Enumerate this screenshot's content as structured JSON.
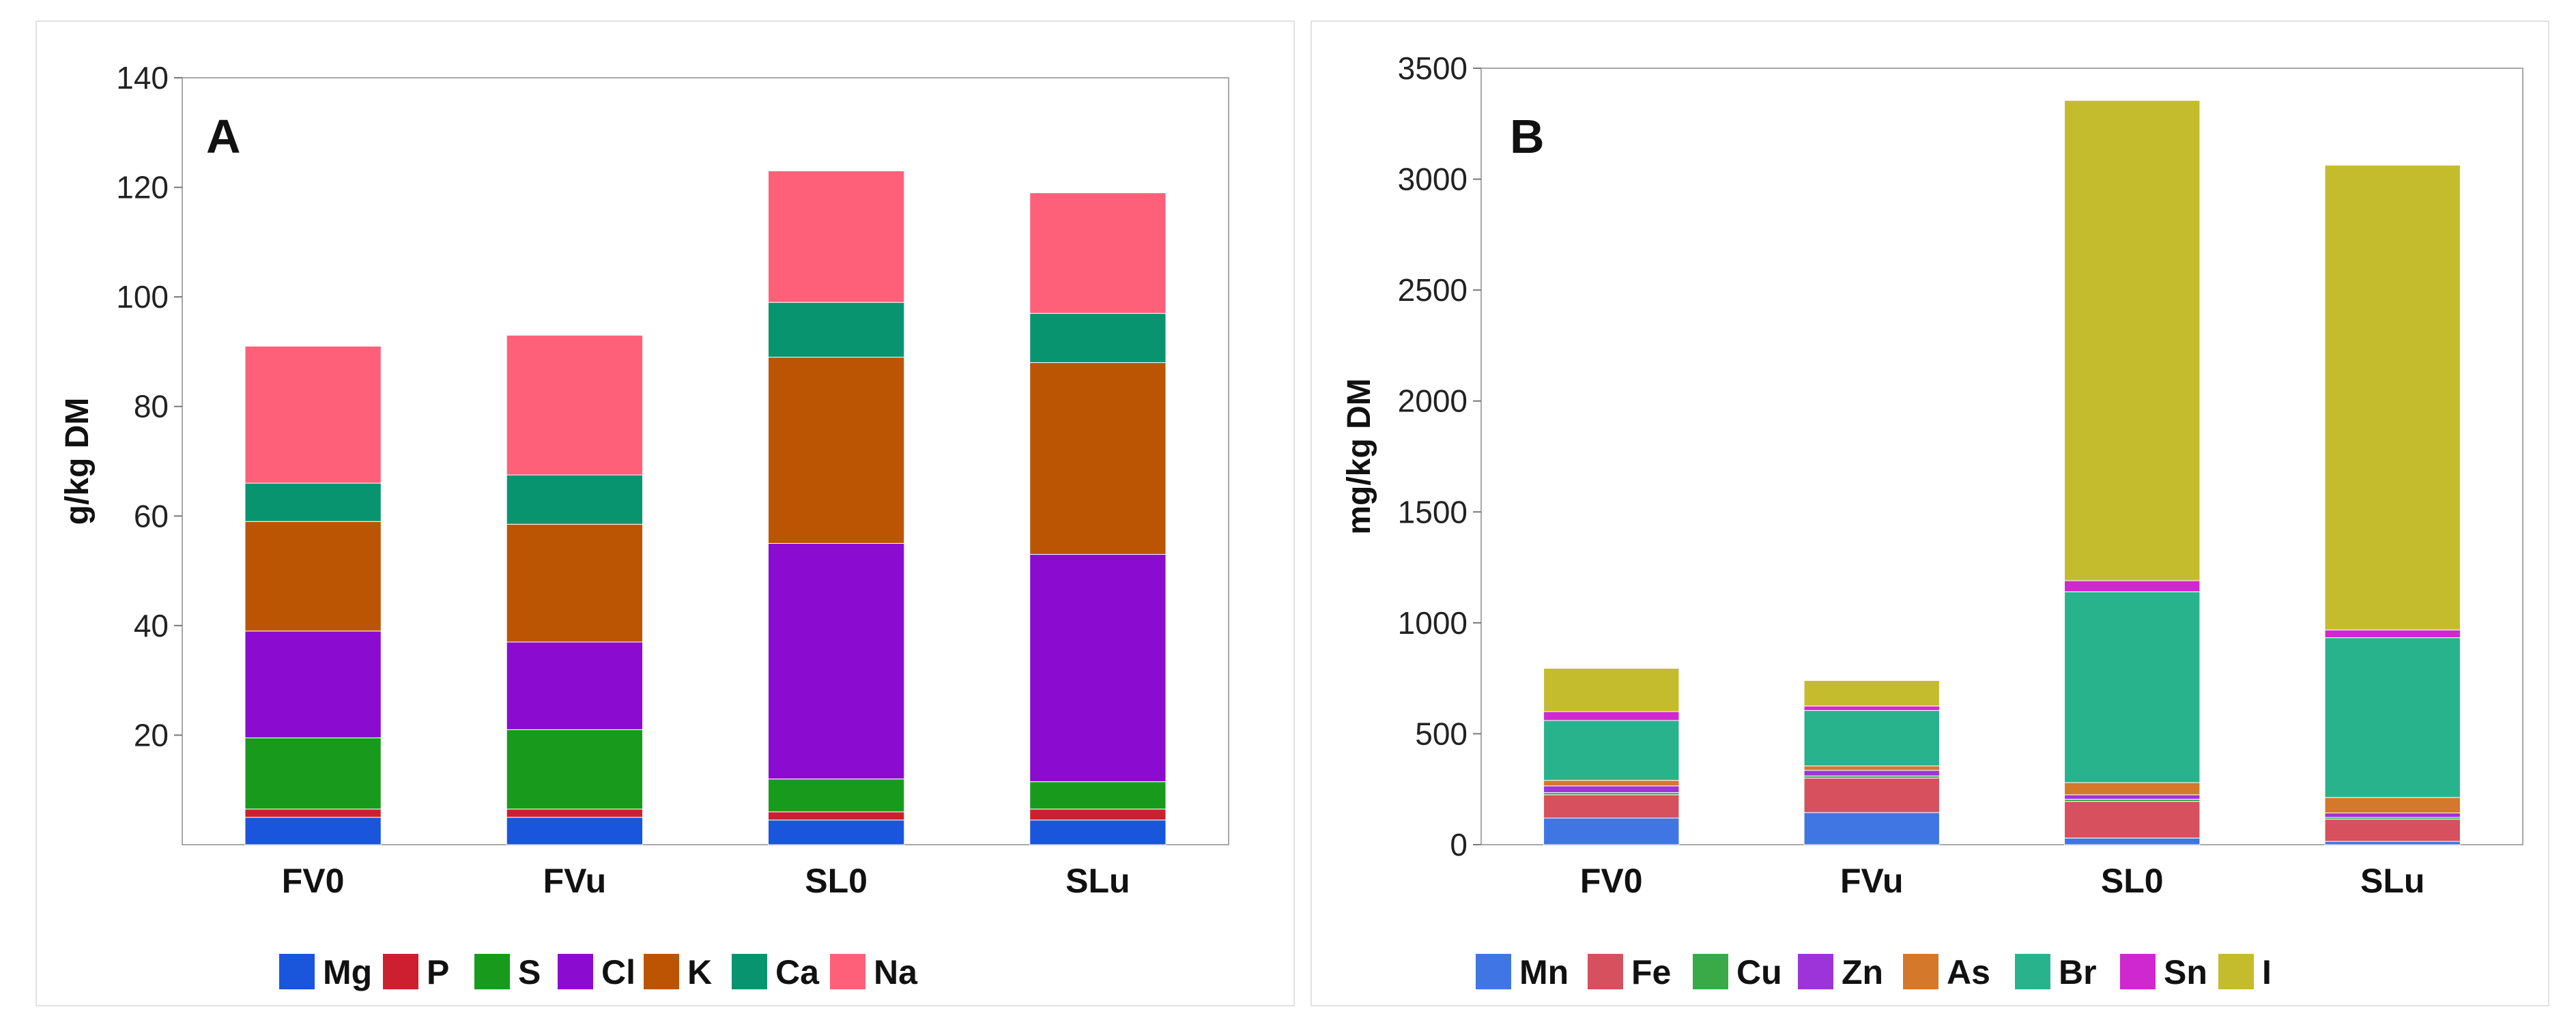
{
  "chart_data": [
    {
      "type": "bar",
      "stacked": true,
      "panel_label": "A",
      "title": "",
      "xlabel": "",
      "ylabel": "g/kg DM",
      "ylim": [
        0,
        140
      ],
      "yticks": [
        20,
        40,
        60,
        80,
        100,
        120,
        140
      ],
      "categories": [
        "FV0",
        "FVu",
        "SL0",
        "SLu"
      ],
      "series": [
        {
          "name": "Mg",
          "color": "#1a56db",
          "values": [
            5,
            5,
            4.5,
            4.5
          ]
        },
        {
          "name": "P",
          "color": "#cc1f2f",
          "values": [
            1.5,
            1.5,
            1.5,
            2
          ]
        },
        {
          "name": "S",
          "color": "#189b1c",
          "values": [
            13,
            14.5,
            6,
            5
          ]
        },
        {
          "name": "Cl",
          "color": "#8b0cd0",
          "values": [
            19.5,
            16,
            43,
            41.5
          ]
        },
        {
          "name": "K",
          "color": "#bb5503",
          "values": [
            20,
            21.5,
            34,
            35
          ]
        },
        {
          "name": "Ca",
          "color": "#099470",
          "values": [
            7,
            9,
            10,
            9
          ]
        },
        {
          "name": "Na",
          "color": "#fe6079",
          "values": [
            25,
            25.5,
            24,
            22
          ]
        }
      ],
      "legend": "bottom"
    },
    {
      "type": "bar",
      "stacked": true,
      "panel_label": "B",
      "title": "",
      "xlabel": "",
      "ylabel": "mg/kg DM",
      "ylim": [
        0,
        3500
      ],
      "yticks": [
        0,
        500,
        1000,
        1500,
        2000,
        2500,
        3000,
        3500
      ],
      "categories": [
        "FV0",
        "FVu",
        "SL0",
        "SLu"
      ],
      "series": [
        {
          "name": "Mn",
          "color": "#3f76e3",
          "values": [
            120,
            145,
            30,
            15
          ]
        },
        {
          "name": "Fe",
          "color": "#d6505d",
          "values": [
            105,
            155,
            165,
            100
          ]
        },
        {
          "name": "Cu",
          "color": "#3aa948",
          "values": [
            10,
            10,
            10,
            8
          ]
        },
        {
          "name": "Zn",
          "color": "#9d34d9",
          "values": [
            30,
            25,
            20,
            20
          ]
        },
        {
          "name": "As",
          "color": "#d4782b",
          "values": [
            25,
            20,
            55,
            70
          ]
        },
        {
          "name": "Br",
          "color": "#28b38d",
          "values": [
            270,
            250,
            860,
            720
          ]
        },
        {
          "name": "Sn",
          "color": "#cf28cf",
          "values": [
            40,
            20,
            50,
            35
          ]
        },
        {
          "name": "I",
          "color": "#c4bc2d",
          "values": [
            195,
            115,
            2165,
            2095
          ]
        }
      ],
      "legend": "bottom"
    }
  ]
}
